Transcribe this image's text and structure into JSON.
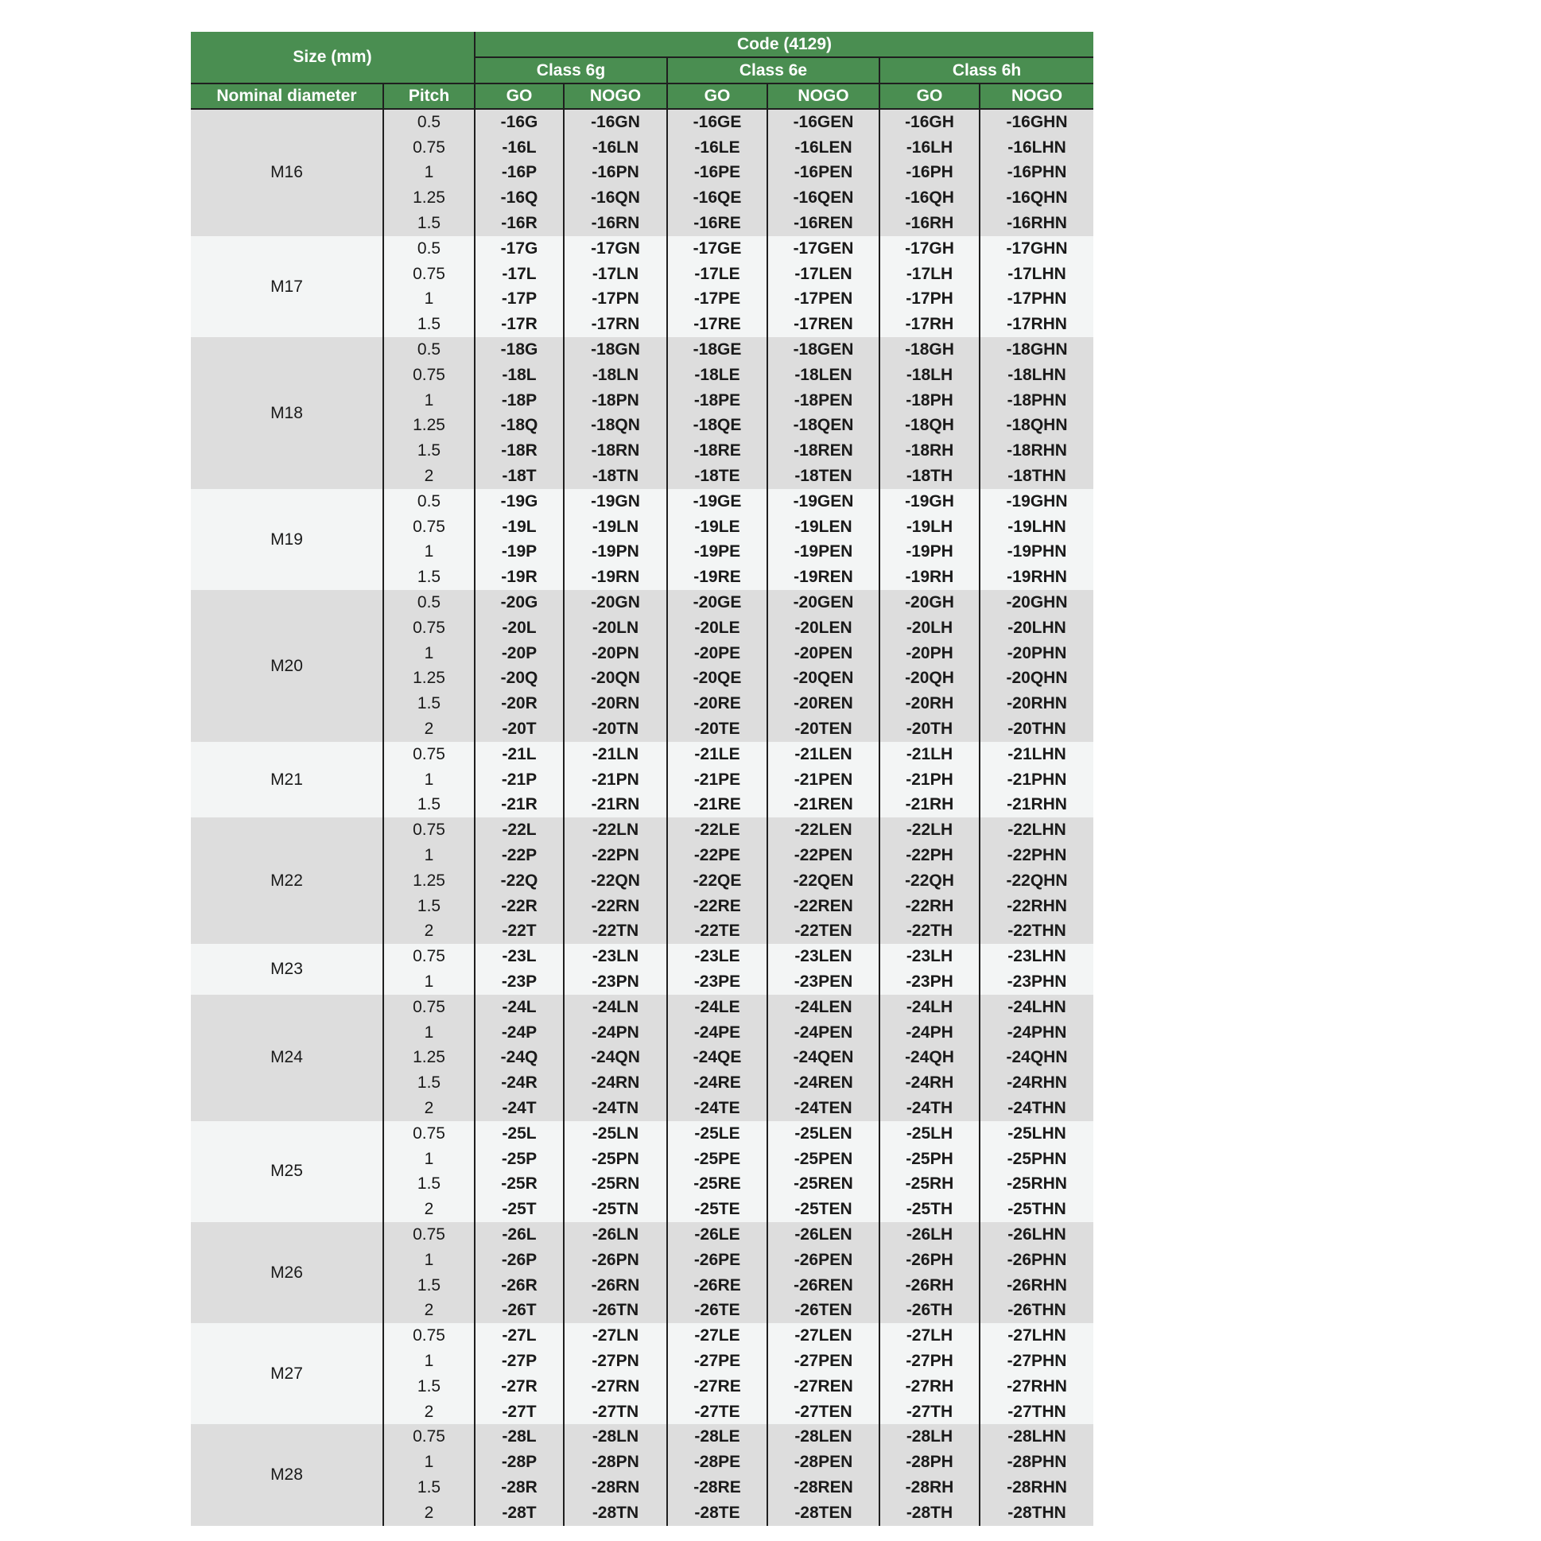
{
  "header": {
    "size": "Size (mm)",
    "code": "Code (4129)",
    "classes": [
      "Class 6g",
      "Class 6e",
      "Class 6h"
    ],
    "nominal": "Nominal diameter",
    "pitch": "Pitch",
    "go": "GO",
    "nogo": "NOGO"
  },
  "colors": {
    "header_green": "#4a8e51",
    "row_shade_a": "#dddddd",
    "row_shade_b": "#f3f5f5"
  },
  "groups": [
    {
      "diameter": "M16",
      "rows": [
        [
          "0.5",
          "-16G",
          "-16GN",
          "-16GE",
          "-16GEN",
          "-16GH",
          "-16GHN"
        ],
        [
          "0.75",
          "-16L",
          "-16LN",
          "-16LE",
          "-16LEN",
          "-16LH",
          "-16LHN"
        ],
        [
          "1",
          "-16P",
          "-16PN",
          "-16PE",
          "-16PEN",
          "-16PH",
          "-16PHN"
        ],
        [
          "1.25",
          "-16Q",
          "-16QN",
          "-16QE",
          "-16QEN",
          "-16QH",
          "-16QHN"
        ],
        [
          "1.5",
          "-16R",
          "-16RN",
          "-16RE",
          "-16REN",
          "-16RH",
          "-16RHN"
        ]
      ]
    },
    {
      "diameter": "M17",
      "rows": [
        [
          "0.5",
          "-17G",
          "-17GN",
          "-17GE",
          "-17GEN",
          "-17GH",
          "-17GHN"
        ],
        [
          "0.75",
          "-17L",
          "-17LN",
          "-17LE",
          "-17LEN",
          "-17LH",
          "-17LHN"
        ],
        [
          "1",
          "-17P",
          "-17PN",
          "-17PE",
          "-17PEN",
          "-17PH",
          "-17PHN"
        ],
        [
          "1.5",
          "-17R",
          "-17RN",
          "-17RE",
          "-17REN",
          "-17RH",
          "-17RHN"
        ]
      ]
    },
    {
      "diameter": "M18",
      "rows": [
        [
          "0.5",
          "-18G",
          "-18GN",
          "-18GE",
          "-18GEN",
          "-18GH",
          "-18GHN"
        ],
        [
          "0.75",
          "-18L",
          "-18LN",
          "-18LE",
          "-18LEN",
          "-18LH",
          "-18LHN"
        ],
        [
          "1",
          "-18P",
          "-18PN",
          "-18PE",
          "-18PEN",
          "-18PH",
          "-18PHN"
        ],
        [
          "1.25",
          "-18Q",
          "-18QN",
          "-18QE",
          "-18QEN",
          "-18QH",
          "-18QHN"
        ],
        [
          "1.5",
          "-18R",
          "-18RN",
          "-18RE",
          "-18REN",
          "-18RH",
          "-18RHN"
        ],
        [
          "2",
          "-18T",
          "-18TN",
          "-18TE",
          "-18TEN",
          "-18TH",
          "-18THN"
        ]
      ]
    },
    {
      "diameter": "M19",
      "rows": [
        [
          "0.5",
          "-19G",
          "-19GN",
          "-19GE",
          "-19GEN",
          "-19GH",
          "-19GHN"
        ],
        [
          "0.75",
          "-19L",
          "-19LN",
          "-19LE",
          "-19LEN",
          "-19LH",
          "-19LHN"
        ],
        [
          "1",
          "-19P",
          "-19PN",
          "-19PE",
          "-19PEN",
          "-19PH",
          "-19PHN"
        ],
        [
          "1.5",
          "-19R",
          "-19RN",
          "-19RE",
          "-19REN",
          "-19RH",
          "-19RHN"
        ]
      ]
    },
    {
      "diameter": "M20",
      "rows": [
        [
          "0.5",
          "-20G",
          "-20GN",
          "-20GE",
          "-20GEN",
          "-20GH",
          "-20GHN"
        ],
        [
          "0.75",
          "-20L",
          "-20LN",
          "-20LE",
          "-20LEN",
          "-20LH",
          "-20LHN"
        ],
        [
          "1",
          "-20P",
          "-20PN",
          "-20PE",
          "-20PEN",
          "-20PH",
          "-20PHN"
        ],
        [
          "1.25",
          "-20Q",
          "-20QN",
          "-20QE",
          "-20QEN",
          "-20QH",
          "-20QHN"
        ],
        [
          "1.5",
          "-20R",
          "-20RN",
          "-20RE",
          "-20REN",
          "-20RH",
          "-20RHN"
        ],
        [
          "2",
          "-20T",
          "-20TN",
          "-20TE",
          "-20TEN",
          "-20TH",
          "-20THN"
        ]
      ]
    },
    {
      "diameter": "M21",
      "rows": [
        [
          "0.75",
          "-21L",
          "-21LN",
          "-21LE",
          "-21LEN",
          "-21LH",
          "-21LHN"
        ],
        [
          "1",
          "-21P",
          "-21PN",
          "-21PE",
          "-21PEN",
          "-21PH",
          "-21PHN"
        ],
        [
          "1.5",
          "-21R",
          "-21RN",
          "-21RE",
          "-21REN",
          "-21RH",
          "-21RHN"
        ]
      ]
    },
    {
      "diameter": "M22",
      "rows": [
        [
          "0.75",
          "-22L",
          "-22LN",
          "-22LE",
          "-22LEN",
          "-22LH",
          "-22LHN"
        ],
        [
          "1",
          "-22P",
          "-22PN",
          "-22PE",
          "-22PEN",
          "-22PH",
          "-22PHN"
        ],
        [
          "1.25",
          "-22Q",
          "-22QN",
          "-22QE",
          "-22QEN",
          "-22QH",
          "-22QHN"
        ],
        [
          "1.5",
          "-22R",
          "-22RN",
          "-22RE",
          "-22REN",
          "-22RH",
          "-22RHN"
        ],
        [
          "2",
          "-22T",
          "-22TN",
          "-22TE",
          "-22TEN",
          "-22TH",
          "-22THN"
        ]
      ]
    },
    {
      "diameter": "M23",
      "rows": [
        [
          "0.75",
          "-23L",
          "-23LN",
          "-23LE",
          "-23LEN",
          "-23LH",
          "-23LHN"
        ],
        [
          "1",
          "-23P",
          "-23PN",
          "-23PE",
          "-23PEN",
          "-23PH",
          "-23PHN"
        ]
      ]
    },
    {
      "diameter": "M24",
      "rows": [
        [
          "0.75",
          "-24L",
          "-24LN",
          "-24LE",
          "-24LEN",
          "-24LH",
          "-24LHN"
        ],
        [
          "1",
          "-24P",
          "-24PN",
          "-24PE",
          "-24PEN",
          "-24PH",
          "-24PHN"
        ],
        [
          "1.25",
          "-24Q",
          "-24QN",
          "-24QE",
          "-24QEN",
          "-24QH",
          "-24QHN"
        ],
        [
          "1.5",
          "-24R",
          "-24RN",
          "-24RE",
          "-24REN",
          "-24RH",
          "-24RHN"
        ],
        [
          "2",
          "-24T",
          "-24TN",
          "-24TE",
          "-24TEN",
          "-24TH",
          "-24THN"
        ]
      ]
    },
    {
      "diameter": "M25",
      "rows": [
        [
          "0.75",
          "-25L",
          "-25LN",
          "-25LE",
          "-25LEN",
          "-25LH",
          "-25LHN"
        ],
        [
          "1",
          "-25P",
          "-25PN",
          "-25PE",
          "-25PEN",
          "-25PH",
          "-25PHN"
        ],
        [
          "1.5",
          "-25R",
          "-25RN",
          "-25RE",
          "-25REN",
          "-25RH",
          "-25RHN"
        ],
        [
          "2",
          "-25T",
          "-25TN",
          "-25TE",
          "-25TEN",
          "-25TH",
          "-25THN"
        ]
      ]
    },
    {
      "diameter": "M26",
      "rows": [
        [
          "0.75",
          "-26L",
          "-26LN",
          "-26LE",
          "-26LEN",
          "-26LH",
          "-26LHN"
        ],
        [
          "1",
          "-26P",
          "-26PN",
          "-26PE",
          "-26PEN",
          "-26PH",
          "-26PHN"
        ],
        [
          "1.5",
          "-26R",
          "-26RN",
          "-26RE",
          "-26REN",
          "-26RH",
          "-26RHN"
        ],
        [
          "2",
          "-26T",
          "-26TN",
          "-26TE",
          "-26TEN",
          "-26TH",
          "-26THN"
        ]
      ]
    },
    {
      "diameter": "M27",
      "rows": [
        [
          "0.75",
          "-27L",
          "-27LN",
          "-27LE",
          "-27LEN",
          "-27LH",
          "-27LHN"
        ],
        [
          "1",
          "-27P",
          "-27PN",
          "-27PE",
          "-27PEN",
          "-27PH",
          "-27PHN"
        ],
        [
          "1.5",
          "-27R",
          "-27RN",
          "-27RE",
          "-27REN",
          "-27RH",
          "-27RHN"
        ],
        [
          "2",
          "-27T",
          "-27TN",
          "-27TE",
          "-27TEN",
          "-27TH",
          "-27THN"
        ]
      ]
    },
    {
      "diameter": "M28",
      "rows": [
        [
          "0.75",
          "-28L",
          "-28LN",
          "-28LE",
          "-28LEN",
          "-28LH",
          "-28LHN"
        ],
        [
          "1",
          "-28P",
          "-28PN",
          "-28PE",
          "-28PEN",
          "-28PH",
          "-28PHN"
        ],
        [
          "1.5",
          "-28R",
          "-28RN",
          "-28RE",
          "-28REN",
          "-28RH",
          "-28RHN"
        ],
        [
          "2",
          "-28T",
          "-28TN",
          "-28TE",
          "-28TEN",
          "-28TH",
          "-28THN"
        ]
      ]
    }
  ]
}
